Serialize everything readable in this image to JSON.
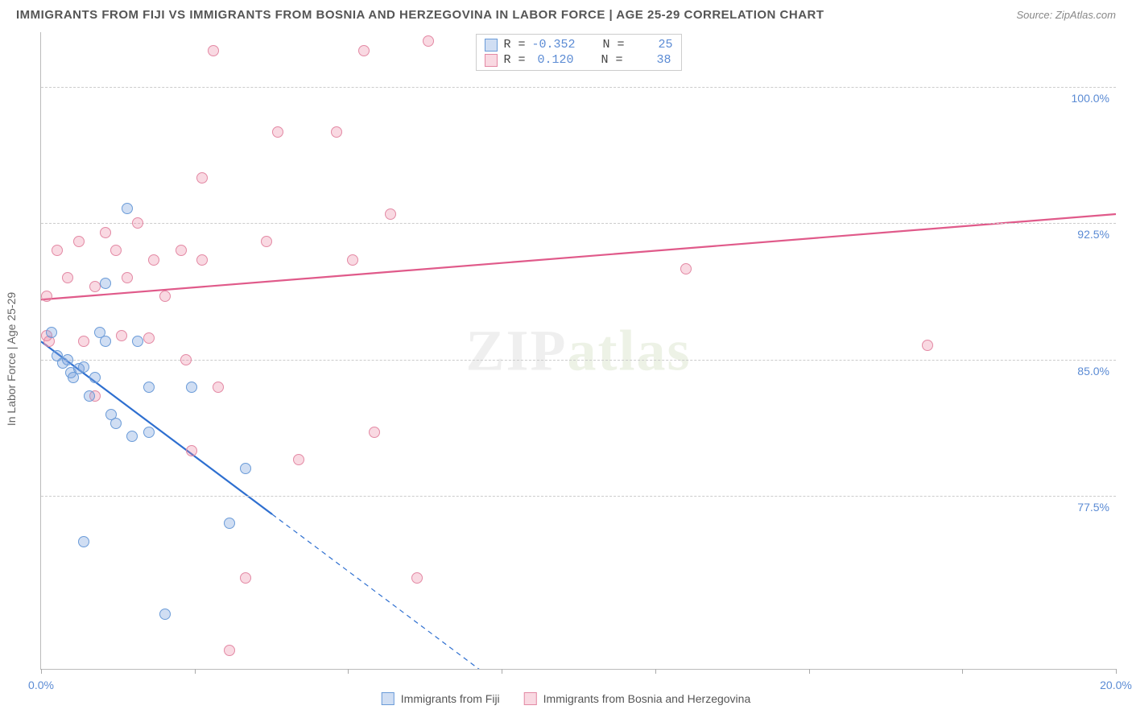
{
  "header": {
    "title": "IMMIGRANTS FROM FIJI VS IMMIGRANTS FROM BOSNIA AND HERZEGOVINA IN LABOR FORCE | AGE 25-29 CORRELATION CHART",
    "source_prefix": "Source: ",
    "source_name": "ZipAtlas.com"
  },
  "chart": {
    "type": "scatter",
    "background_color": "#ffffff",
    "grid_color": "#cccccc",
    "axis_color": "#bbbbbb",
    "ylabel": "In Labor Force | Age 25-29",
    "xlim": [
      0.0,
      20.0
    ],
    "ylim": [
      68.0,
      103.0
    ],
    "xtick_positions": [
      0.0,
      2.857,
      5.714,
      8.571,
      11.429,
      14.286,
      17.143,
      20.0
    ],
    "xtick_labels": {
      "0": "0.0%",
      "7": "20.0%"
    },
    "ytick_positions": [
      77.5,
      85.0,
      92.5,
      100.0
    ],
    "ytick_labels": [
      "77.5%",
      "85.0%",
      "92.5%",
      "100.0%"
    ],
    "tick_label_color": "#5b8bd4",
    "tick_label_fontsize": 14,
    "marker_radius": 7,
    "marker_border_width": 1.5,
    "watermark": {
      "zip": "ZIP",
      "atlas": "atlas",
      "zip_color": "#dddddd",
      "atlas_color": "#d8e3c8"
    },
    "series": [
      {
        "key": "fiji",
        "label": "Immigrants from Fiji",
        "fill": "rgba(120,160,220,0.35)",
        "stroke": "#6a9bd8",
        "r_value": "-0.352",
        "n_value": "25",
        "trend": {
          "x1": 0.0,
          "y1": 86.0,
          "x2": 4.3,
          "y2": 76.5,
          "color": "#2e6fd0",
          "width": 2.2,
          "solid": true,
          "ext_x2": 9.5,
          "ext_y2": 65.0
        },
        "points": [
          [
            0.2,
            86.5
          ],
          [
            0.3,
            85.2
          ],
          [
            0.4,
            84.8
          ],
          [
            0.5,
            85.0
          ],
          [
            0.55,
            84.3
          ],
          [
            0.7,
            84.5
          ],
          [
            0.8,
            84.6
          ],
          [
            0.9,
            83.0
          ],
          [
            1.0,
            84.0
          ],
          [
            1.1,
            86.5
          ],
          [
            1.2,
            86.0
          ],
          [
            1.2,
            89.2
          ],
          [
            1.3,
            82.0
          ],
          [
            1.4,
            81.5
          ],
          [
            1.6,
            93.3
          ],
          [
            1.7,
            80.8
          ],
          [
            1.8,
            86.0
          ],
          [
            2.0,
            81.0
          ],
          [
            2.0,
            83.5
          ],
          [
            2.3,
            71.0
          ],
          [
            0.8,
            75.0
          ],
          [
            2.8,
            83.5
          ],
          [
            3.5,
            76.0
          ],
          [
            3.8,
            79.0
          ],
          [
            0.6,
            84.0
          ]
        ]
      },
      {
        "key": "bosnia",
        "label": "Immigrants from Bosnia and Herzegovina",
        "fill": "rgba(235,130,160,0.30)",
        "stroke": "#e389a4",
        "r_value": "0.120",
        "n_value": "38",
        "trend": {
          "x1": 0.0,
          "y1": 88.3,
          "x2": 20.0,
          "y2": 93.0,
          "color": "#e05a8a",
          "width": 2.2,
          "solid": true
        },
        "points": [
          [
            0.1,
            88.5
          ],
          [
            0.1,
            86.3
          ],
          [
            0.15,
            86.0
          ],
          [
            0.3,
            91.0
          ],
          [
            0.5,
            89.5
          ],
          [
            0.7,
            91.5
          ],
          [
            0.8,
            86.0
          ],
          [
            1.0,
            89.0
          ],
          [
            1.0,
            83.0
          ],
          [
            1.2,
            92.0
          ],
          [
            1.4,
            91.0
          ],
          [
            1.5,
            86.3
          ],
          [
            1.6,
            89.5
          ],
          [
            1.8,
            92.5
          ],
          [
            2.0,
            86.2
          ],
          [
            2.1,
            90.5
          ],
          [
            2.3,
            88.5
          ],
          [
            2.6,
            91.0
          ],
          [
            2.7,
            85.0
          ],
          [
            2.8,
            80.0
          ],
          [
            3.0,
            95.0
          ],
          [
            3.0,
            90.5
          ],
          [
            3.2,
            102.0
          ],
          [
            3.3,
            83.5
          ],
          [
            3.5,
            69.0
          ],
          [
            3.8,
            73.0
          ],
          [
            4.2,
            91.5
          ],
          [
            4.4,
            97.5
          ],
          [
            4.8,
            79.5
          ],
          [
            5.5,
            97.5
          ],
          [
            5.8,
            90.5
          ],
          [
            6.0,
            102.0
          ],
          [
            6.2,
            81.0
          ],
          [
            6.5,
            93.0
          ],
          [
            7.0,
            73.0
          ],
          [
            7.2,
            102.5
          ],
          [
            12.0,
            90.0
          ],
          [
            16.5,
            85.8
          ]
        ]
      }
    ],
    "stats_box": {
      "r_label": "R =",
      "n_label": "N ="
    }
  }
}
